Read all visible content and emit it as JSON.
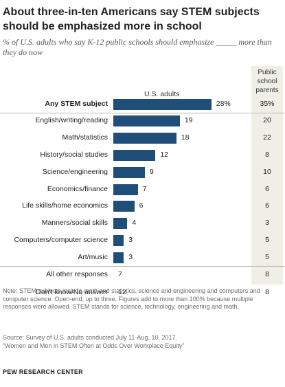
{
  "title": "About three-in-ten Americans say STEM subjects should be emphasized more in school",
  "subtitle": "% of U.S. adults who say K-12 public schools should emphasize _____ more than they do now",
  "chart_data": {
    "type": "bar",
    "orientation": "horizontal",
    "series_headers": [
      "U.S. adults",
      "Public school parents"
    ],
    "categories": [
      "Any STEM subject",
      "English/writing/reading",
      "Math/statistics",
      "History/social studies",
      "Science/engineering",
      "Economics/finance",
      "Life skills/home economics",
      "Manners/social skills",
      "Computers/computer science",
      "Art/music",
      "All other responses",
      "Don't know/No answer"
    ],
    "us_adults": [
      28,
      19,
      18,
      12,
      9,
      7,
      6,
      4,
      3,
      3,
      7,
      12
    ],
    "us_adults_labels": [
      "28%",
      "19",
      "18",
      "12",
      "9",
      "7",
      "6",
      "4",
      "3",
      "3",
      "7",
      "12"
    ],
    "public_school_parents": [
      35,
      20,
      22,
      8,
      10,
      6,
      6,
      3,
      5,
      5,
      8,
      8
    ],
    "public_school_parents_labels": [
      "35%",
      "20",
      "22",
      "8",
      "10",
      "6",
      "6",
      "3",
      "5",
      "5",
      "8",
      "8"
    ],
    "bar_rows": 10,
    "bar_color": "#1f4e79"
  },
  "note": "Note: STEM subjects include math and statistics, science and engineering and computers and computer science. Open-end; up to three. Figures add to more than 100% because multiple responses were allowed. STEM stands for science, technology, engineering and math.",
  "source_lines": [
    "Source: Survey of U.S. adults conducted July 11-Aug. 10, 2017.",
    "“Women and Men in STEM Often at Odds Over Workplace Equity”"
  ],
  "brand": "PEW RESEARCH CENTER"
}
